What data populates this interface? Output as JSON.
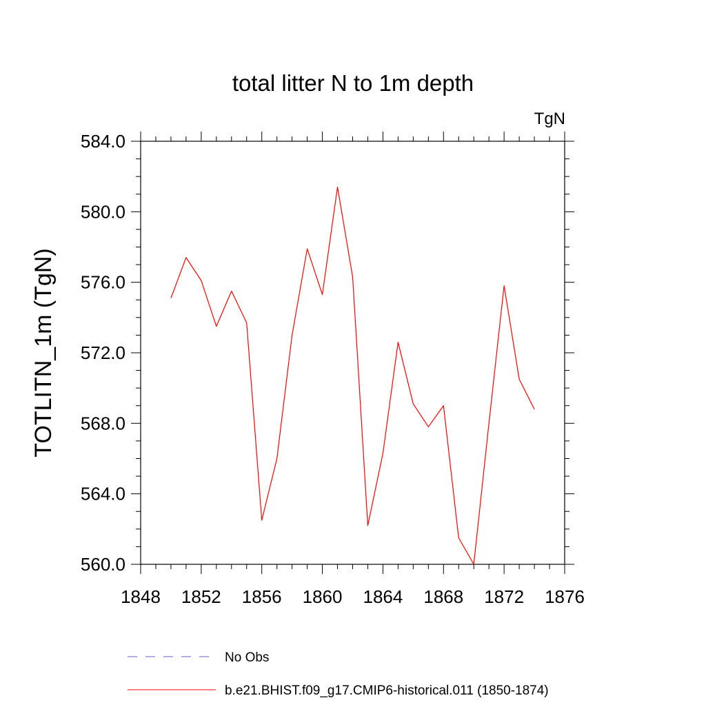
{
  "chart_data": {
    "type": "line",
    "title": "total litter N to 1m depth",
    "units_label": "TgN",
    "ylabel": "TOTLITN_1m  (TgN)",
    "xlabel": "",
    "xlim": [
      1848,
      1876
    ],
    "ylim": [
      560.0,
      584.0
    ],
    "x_ticks": [
      "1848",
      "1852",
      "1856",
      "1860",
      "1864",
      "1868",
      "1872",
      "1876"
    ],
    "y_ticks": [
      "560.0",
      "564.0",
      "568.0",
      "572.0",
      "576.0",
      "580.0",
      "584.0"
    ],
    "grid": false,
    "legend_position": "bottom",
    "series": [
      {
        "name": "No Obs",
        "color": "#6a5acd",
        "dash": "dashed",
        "x": [],
        "y": []
      },
      {
        "name": "b.e21.BHIST.f09_g17.CMIP6-historical.011 (1850-1874)",
        "color": "#ff0000",
        "dash": "solid",
        "x": [
          1850,
          1851,
          1852,
          1853,
          1854,
          1855,
          1856,
          1857,
          1858,
          1859,
          1860,
          1861,
          1862,
          1863,
          1864,
          1865,
          1866,
          1867,
          1868,
          1869,
          1870,
          1871,
          1872,
          1873,
          1874
        ],
        "y": [
          575.1,
          577.4,
          576.1,
          573.5,
          575.5,
          573.7,
          562.5,
          566.0,
          573.0,
          577.9,
          575.3,
          581.4,
          576.3,
          562.2,
          566.3,
          572.6,
          569.1,
          567.8,
          569.0,
          561.5,
          560.0,
          568.0,
          575.8,
          570.5,
          568.8
        ]
      }
    ]
  }
}
